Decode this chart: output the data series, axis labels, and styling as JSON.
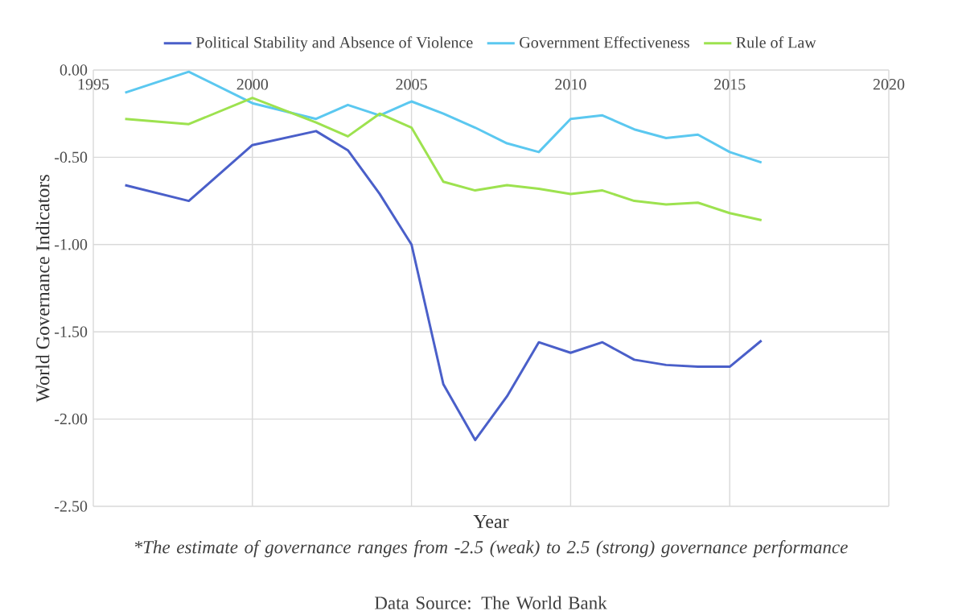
{
  "chart_data": {
    "type": "line",
    "xlabel": "Year",
    "ylabel": "World Governance Indicators",
    "x": [
      1996,
      1998,
      2000,
      2002,
      2003,
      2004,
      2005,
      2006,
      2007,
      2008,
      2009,
      2010,
      2011,
      2012,
      2013,
      2014,
      2015,
      2016
    ],
    "series": [
      {
        "name": "Political Stability and Absence of Violence",
        "color": "#4a5fc9",
        "values": [
          -0.66,
          -0.75,
          -0.43,
          -0.35,
          -0.46,
          -0.71,
          -1.0,
          -1.8,
          -2.12,
          -1.87,
          -1.56,
          -1.62,
          -1.56,
          -1.66,
          -1.69,
          -1.7,
          -1.7,
          -1.55
        ]
      },
      {
        "name": "Government Effectiveness",
        "color": "#5bc8f0",
        "values": [
          -0.13,
          -0.01,
          -0.19,
          -0.28,
          -0.2,
          -0.26,
          -0.18,
          -0.25,
          -0.33,
          -0.42,
          -0.47,
          -0.28,
          -0.26,
          -0.34,
          -0.39,
          -0.37,
          -0.47,
          -0.53
        ]
      },
      {
        "name": "Rule of Law",
        "color": "#9de24f",
        "values": [
          -0.28,
          -0.31,
          -0.16,
          -0.3,
          -0.38,
          -0.25,
          -0.33,
          -0.64,
          -0.69,
          -0.66,
          -0.68,
          -0.71,
          -0.69,
          -0.75,
          -0.77,
          -0.76,
          -0.82,
          -0.86
        ]
      }
    ],
    "xlim": [
      1995,
      2020
    ],
    "xticks": [
      1995,
      2000,
      2005,
      2010,
      2015,
      2020
    ],
    "ylim": [
      -2.5,
      0
    ],
    "yticks": [
      {
        "value": -2.5,
        "label": "-2.50"
      },
      {
        "value": -2.0,
        "label": "-2.00"
      },
      {
        "value": -1.5,
        "label": "-1.50"
      },
      {
        "value": -1.0,
        "label": "-1.00"
      },
      {
        "value": -0.5,
        "label": "-0.50"
      },
      {
        "value": 0,
        "label": "0.00"
      }
    ],
    "grid": true,
    "legend": "top",
    "marker": "none",
    "line_style": "solid",
    "annotations": [
      "*The estimate of governance ranges from -2.5 (weak) to 2.5 (strong) governance performance",
      "Data Source: The World Bank"
    ]
  }
}
